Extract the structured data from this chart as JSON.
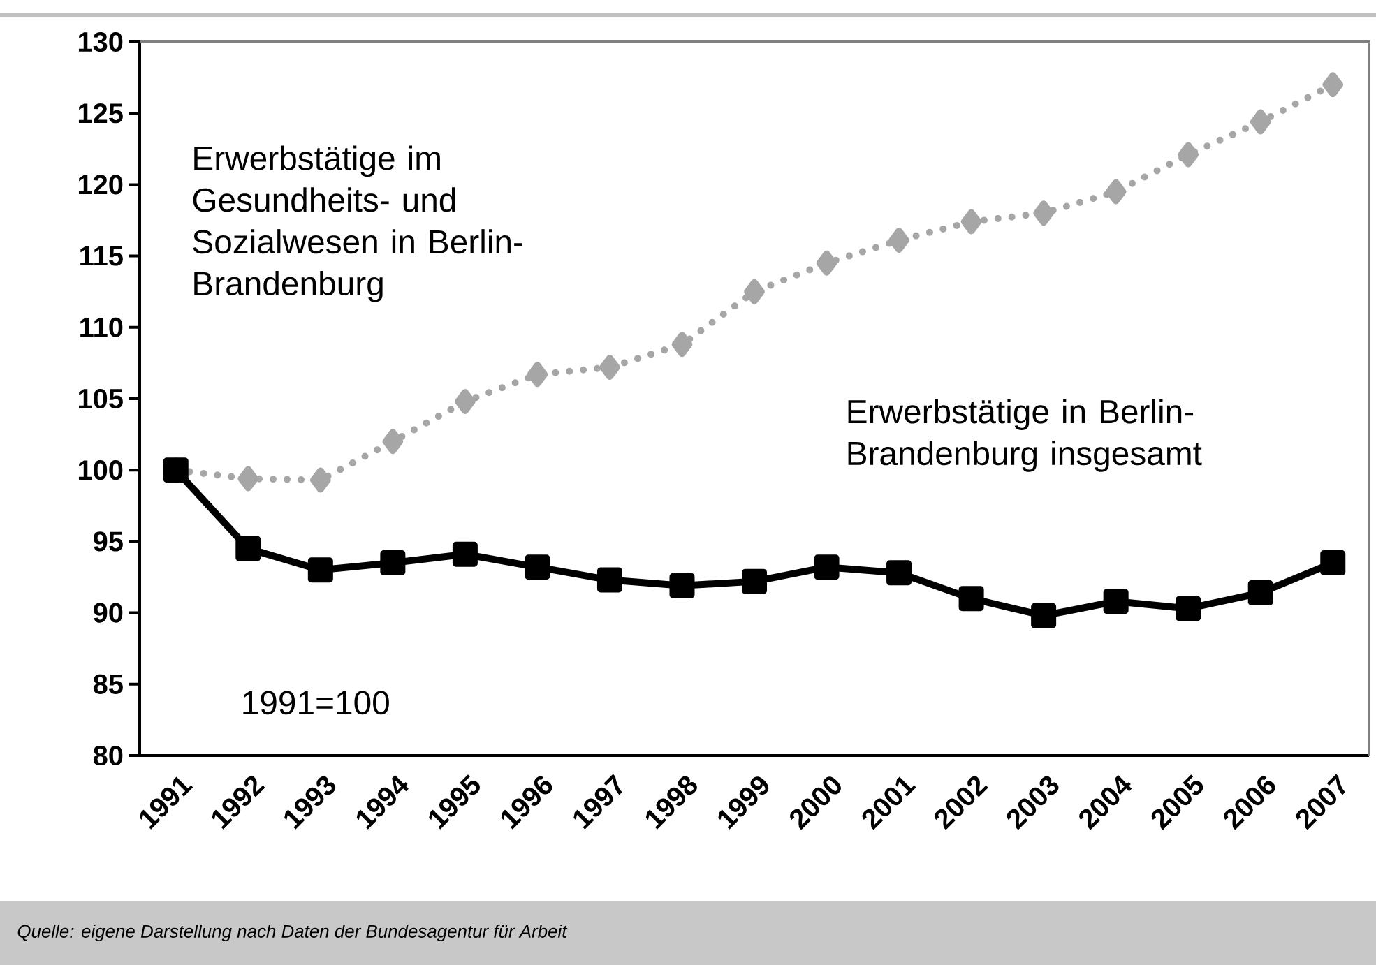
{
  "chart_data": {
    "type": "line",
    "categories": [
      "1991",
      "1992",
      "1993",
      "1994",
      "1995",
      "1996",
      "1997",
      "1998",
      "1999",
      "2000",
      "2001",
      "2002",
      "2003",
      "2004",
      "2005",
      "2006",
      "2007"
    ],
    "series": [
      {
        "name": "Erwerbstätige im Gesundheits- und Sozialwesen in Berlin-Brandenburg",
        "color": "#a6a6a6",
        "marker": "diamond",
        "line_style": "dotted",
        "values": [
          100,
          99.4,
          99.3,
          102,
          104.8,
          106.7,
          107.2,
          108.8,
          112.5,
          114.5,
          116.1,
          117.4,
          118,
          119.5,
          122.1,
          124.4,
          127
        ]
      },
      {
        "name": "Erwerbstätige in Berlin-Brandenburg insgesamt",
        "color": "#000000",
        "marker": "square",
        "line_style": "solid",
        "values": [
          100,
          94.5,
          93,
          93.5,
          94.1,
          93.2,
          92.3,
          91.9,
          92.2,
          93.2,
          92.8,
          91,
          89.8,
          90.8,
          90.3,
          91.4,
          93.5
        ]
      }
    ],
    "ylim": [
      80,
      130
    ],
    "yticks": [
      80,
      85,
      90,
      95,
      100,
      105,
      110,
      115,
      120,
      125,
      130
    ],
    "grid": false,
    "legend": false,
    "annotations": [
      "1991=100",
      "Quelle: eigene Darstellung nach Daten der Bundesagentur für Arbeit"
    ]
  }
}
